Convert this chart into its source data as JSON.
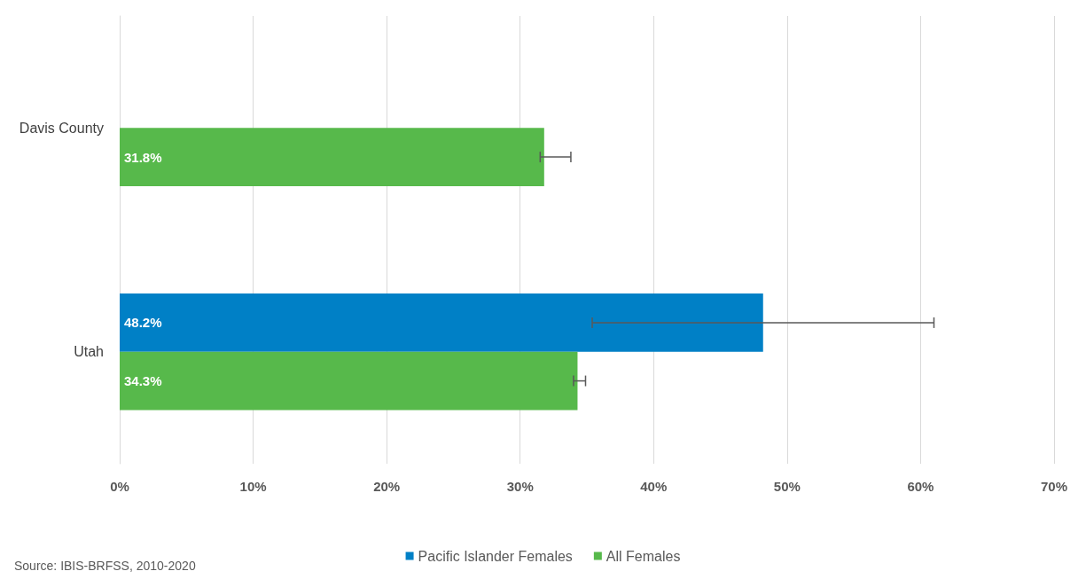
{
  "chart_data": {
    "type": "bar",
    "orientation": "horizontal",
    "categories": [
      "Davis County",
      "Utah"
    ],
    "series": [
      {
        "name": "Pacific Islander Females",
        "color": "#0080c6",
        "values": [
          null,
          48.2
        ],
        "errors": [
          null,
          [
            35.4,
            61.0
          ]
        ],
        "value_labels": [
          null,
          "48.2%"
        ]
      },
      {
        "name": "All Females",
        "color": "#57b94b",
        "values": [
          31.8,
          34.3
        ],
        "errors": [
          [
            31.5,
            33.8
          ],
          [
            34.0,
            34.9
          ]
        ],
        "value_labels": [
          "31.8%",
          "34.3%"
        ]
      }
    ],
    "xlim": [
      0,
      70
    ],
    "xticks": [
      {
        "value": 0,
        "label": "0%"
      },
      {
        "value": 10,
        "label": "10%"
      },
      {
        "value": 20,
        "label": "20%"
      },
      {
        "value": 30,
        "label": "30%"
      },
      {
        "value": 40,
        "label": "40%"
      },
      {
        "value": 50,
        "label": "50%"
      },
      {
        "value": 60,
        "label": "60%"
      },
      {
        "value": 70,
        "label": "70%"
      }
    ],
    "grid": "x",
    "legend": "bottom",
    "annotations": [
      "Source: IBIS-BRFSS, 2010-2020"
    ]
  }
}
